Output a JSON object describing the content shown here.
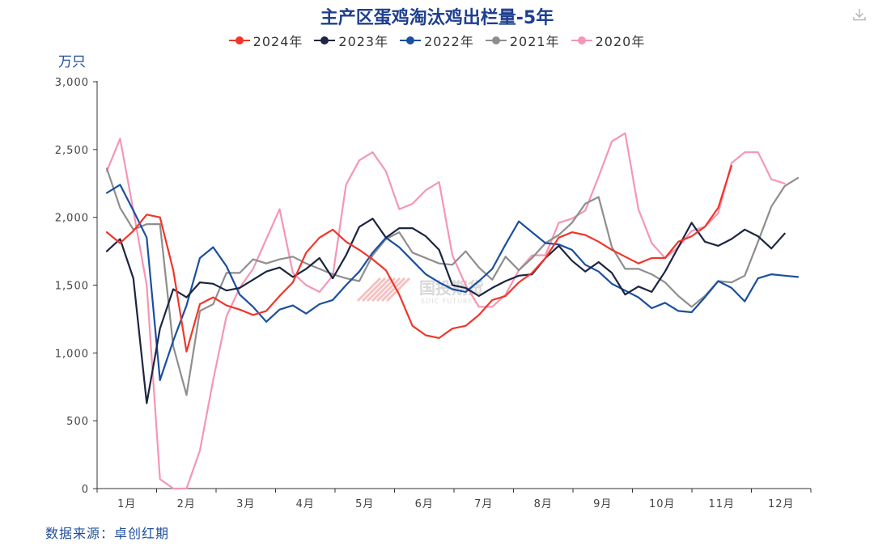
{
  "colors": {
    "title": "#1f3f8f",
    "accent_text": "#1f4e9c",
    "axis": "#333333",
    "watermark": "#f4a6a6"
  },
  "download_icon": "download-icon",
  "watermark": {
    "text": "国投期货",
    "sub": "SDIC FUTURES"
  },
  "source": "数据来源：卓创红期",
  "chart_data": {
    "type": "line",
    "title": "主产区蛋鸡淘汰鸡出栏量-5年",
    "unit": "万只",
    "ylim": [
      0,
      3000
    ],
    "y_ticks": [
      0,
      500,
      1000,
      1500,
      2000,
      2500,
      3000
    ],
    "y_tick_labels": [
      "0",
      "500",
      "1,000",
      "1,500",
      "2,000",
      "2,500",
      "3,000"
    ],
    "x_tick_labels": [
      "1月",
      "2月",
      "3月",
      "4月",
      "5月",
      "6月",
      "7月",
      "8月",
      "9月",
      "10月",
      "11月",
      "12月"
    ],
    "x_unit": "week",
    "grid": false,
    "legend_position": "top",
    "series": [
      {
        "name": "2024年",
        "color": "#f0362a",
        "values": [
          1890,
          1810,
          1900,
          2020,
          2000,
          1610,
          1010,
          1360,
          1410,
          1350,
          1320,
          1280,
          1310,
          1420,
          1520,
          1740,
          1850,
          1910,
          1820,
          1760,
          1690,
          1610,
          1430,
          1200,
          1130,
          1110,
          1180,
          1200,
          1280,
          1390,
          1420,
          1520,
          1590,
          1700,
          1850,
          1890,
          1870,
          1820,
          1760,
          1710,
          1660,
          1700,
          1700,
          1820,
          1860,
          1930,
          2070,
          2380
        ]
      },
      {
        "name": "2023年",
        "color": "#1c2541",
        "values": [
          1750,
          1840,
          1550,
          630,
          1180,
          1470,
          1410,
          1520,
          1510,
          1460,
          1480,
          1540,
          1600,
          1630,
          1560,
          1620,
          1700,
          1550,
          1720,
          1930,
          1990,
          1850,
          1920,
          1920,
          1860,
          1760,
          1500,
          1480,
          1420,
          1480,
          1530,
          1570,
          1580,
          1700,
          1790,
          1680,
          1600,
          1670,
          1590,
          1430,
          1490,
          1450,
          1600,
          1780,
          1960,
          1820,
          1790,
          1840,
          1910,
          1860,
          1770,
          1880
        ]
      },
      {
        "name": "2022年",
        "color": "#1a4fa0",
        "values": [
          2180,
          2240,
          2050,
          1850,
          800,
          1090,
          1350,
          1700,
          1780,
          1640,
          1430,
          1340,
          1230,
          1320,
          1350,
          1290,
          1360,
          1390,
          1500,
          1600,
          1740,
          1850,
          1780,
          1680,
          1580,
          1520,
          1470,
          1450,
          1530,
          1620,
          1800,
          1970,
          1890,
          1810,
          1800,
          1760,
          1650,
          1600,
          1510,
          1460,
          1410,
          1330,
          1370,
          1310,
          1300,
          1410,
          1530,
          1480,
          1380,
          1550,
          1580,
          1570,
          1560
        ]
      },
      {
        "name": "2021年",
        "color": "#8e8e8e",
        "values": [
          2360,
          2070,
          1910,
          1950,
          1950,
          1050,
          690,
          1310,
          1360,
          1590,
          1590,
          1690,
          1660,
          1690,
          1710,
          1660,
          1620,
          1580,
          1550,
          1530,
          1720,
          1840,
          1890,
          1740,
          1700,
          1660,
          1650,
          1750,
          1630,
          1540,
          1710,
          1610,
          1700,
          1810,
          1870,
          1960,
          2100,
          2150,
          1780,
          1620,
          1620,
          1580,
          1520,
          1420,
          1340,
          1420,
          1530,
          1520,
          1570,
          1820,
          2080,
          2230,
          2290
        ]
      },
      {
        "name": "2020年",
        "color": "#f596b4",
        "values": [
          2340,
          2580,
          2050,
          1500,
          70,
          0,
          0,
          280,
          800,
          1270,
          1480,
          1620,
          1840,
          2060,
          1590,
          1500,
          1450,
          1570,
          2240,
          2420,
          2480,
          2340,
          2060,
          2100,
          2200,
          2260,
          1720,
          1500,
          1340,
          1340,
          1430,
          1610,
          1720,
          1720,
          1960,
          1990,
          2050,
          2300,
          2560,
          2620,
          2060,
          1810,
          1700,
          1780,
          1900,
          1930,
          2030,
          2400,
          2480,
          2480,
          2280,
          2250
        ]
      }
    ]
  }
}
